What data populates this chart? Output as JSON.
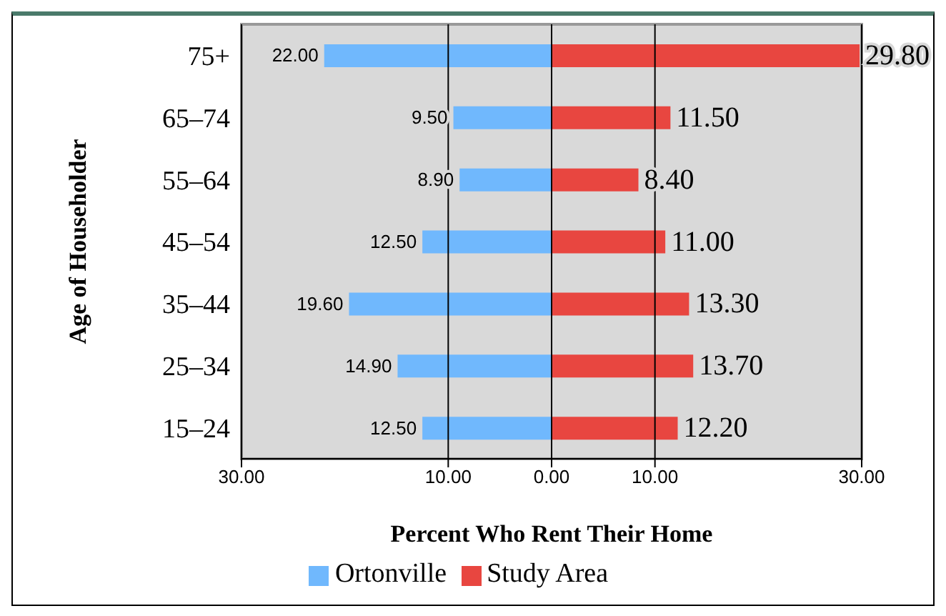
{
  "chart_data": {
    "type": "bar",
    "orientation": "horizontal",
    "xlabel": "Percent Who Rent Their Home",
    "ylabel": "Age of Householder",
    "categories": [
      "75+",
      "65–74",
      "55–64",
      "45–54",
      "35–44",
      "25–34",
      "15–24"
    ],
    "series": [
      {
        "name": "Ortonville",
        "color": "#70b8fd",
        "values": [
          -22.0,
          -9.5,
          -8.9,
          -12.5,
          -19.6,
          -14.9,
          -12.5
        ]
      },
      {
        "name": "Study Area",
        "color": "#e84640",
        "values": [
          29.8,
          11.5,
          8.4,
          11.0,
          13.3,
          13.7,
          12.2
        ],
        "value_labels": [
          "29.80",
          "11.50",
          "8.40",
          "11.00",
          "13.30",
          "13.70",
          "12.20"
        ]
      }
    ],
    "xlim": [
      -30,
      30
    ],
    "xticks": [
      {
        "value": -30,
        "label": "30.00"
      },
      {
        "value": -10,
        "label": "10.00"
      },
      {
        "value": 0,
        "label": "0.00"
      },
      {
        "value": 10,
        "label": "10.00"
      },
      {
        "value": 30,
        "label": "30.00"
      }
    ],
    "grid": "x",
    "legend": "bottom",
    "stacked": true,
    "annotations": [
      {
        "text": "22.00",
        "x": -22.0,
        "y": "75+"
      },
      {
        "text": "9.50",
        "x": -9.5,
        "y": "65–74"
      },
      {
        "text": "8.90",
        "x": -8.9,
        "y": "55–64"
      },
      {
        "text": "12.50",
        "x": -12.5,
        "y": "45–54"
      },
      {
        "text": "19.60",
        "x": -19.6,
        "y": "35–44"
      },
      {
        "text": "14.90",
        "x": -14.9,
        "y": "25–34"
      },
      {
        "text": "12.50",
        "x": -12.5,
        "y": "15–24"
      }
    ]
  }
}
